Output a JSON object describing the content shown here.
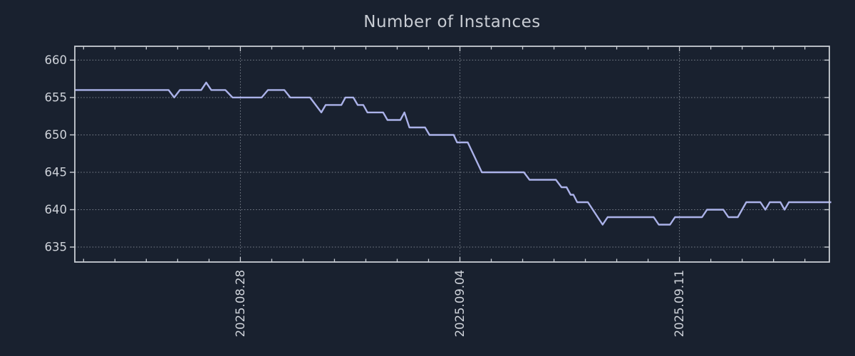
{
  "title": "Number of Instances",
  "colors": {
    "background": "#19212f",
    "line": "#abb2e9",
    "grid": "#8f96a0",
    "spine": "#c9cdd4",
    "tick_label": "#ced2d9",
    "title": "#c8ccd3"
  },
  "chart_data": {
    "type": "line",
    "title": "Number of Instances",
    "xlabel": "",
    "ylabel": "",
    "grid": "dotted",
    "legend": "none",
    "x_axis": {
      "unit": "days relative to 2025-08-28",
      "tick_labels": [
        "2025.08.28",
        "2025.09.04",
        "2025.09.11"
      ],
      "tick_days": [
        0,
        7,
        14
      ],
      "minor_tick_every_days": 1,
      "xlim_days": [
        -5.28,
        18.78
      ]
    },
    "y_axis": {
      "ticks": [
        635,
        640,
        645,
        650,
        655,
        660
      ],
      "ylim": [
        633.0,
        661.85
      ]
    },
    "series": [
      {
        "name": "instances",
        "color": "#abb2e9",
        "points_day_value": [
          [
            -5.28,
            656
          ],
          [
            -2.29,
            656
          ],
          [
            -2.11,
            655
          ],
          [
            -1.93,
            656
          ],
          [
            -1.25,
            656
          ],
          [
            -1.09,
            657
          ],
          [
            -0.93,
            656
          ],
          [
            -0.48,
            656
          ],
          [
            -0.25,
            655
          ],
          [
            0.68,
            655
          ],
          [
            0.88,
            656
          ],
          [
            1.4,
            656
          ],
          [
            1.59,
            655
          ],
          [
            2.22,
            655
          ],
          [
            2.58,
            653
          ],
          [
            2.72,
            654
          ],
          [
            3.22,
            654
          ],
          [
            3.35,
            655
          ],
          [
            3.6,
            655
          ],
          [
            3.74,
            654
          ],
          [
            3.92,
            654
          ],
          [
            4.05,
            653
          ],
          [
            4.55,
            653
          ],
          [
            4.69,
            652
          ],
          [
            5.1,
            652
          ],
          [
            5.23,
            653
          ],
          [
            5.39,
            651
          ],
          [
            5.89,
            651
          ],
          [
            6.03,
            650
          ],
          [
            6.8,
            650
          ],
          [
            6.91,
            649
          ],
          [
            7.25,
            649
          ],
          [
            7.7,
            645
          ],
          [
            9.04,
            645
          ],
          [
            9.22,
            644
          ],
          [
            10.06,
            644
          ],
          [
            10.24,
            643
          ],
          [
            10.4,
            643
          ],
          [
            10.53,
            642
          ],
          [
            10.62,
            642
          ],
          [
            10.74,
            641
          ],
          [
            11.08,
            641
          ],
          [
            11.55,
            638
          ],
          [
            11.71,
            639
          ],
          [
            13.18,
            639
          ],
          [
            13.34,
            638
          ],
          [
            13.7,
            638
          ],
          [
            13.86,
            639
          ],
          [
            14.72,
            639
          ],
          [
            14.88,
            640
          ],
          [
            15.4,
            640
          ],
          [
            15.56,
            639
          ],
          [
            15.86,
            639
          ],
          [
            16.13,
            641
          ],
          [
            16.58,
            641
          ],
          [
            16.74,
            640
          ],
          [
            16.88,
            641
          ],
          [
            17.22,
            641
          ],
          [
            17.35,
            640
          ],
          [
            17.49,
            641
          ],
          [
            18.84,
            641
          ]
        ]
      }
    ]
  }
}
